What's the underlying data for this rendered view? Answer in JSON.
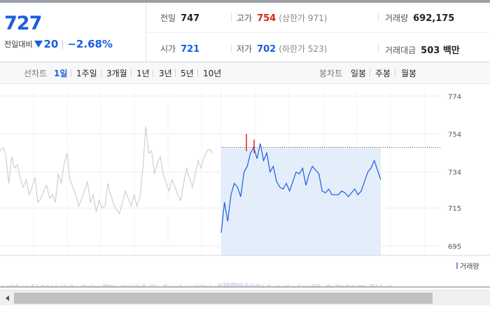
{
  "quote": {
    "price": "727",
    "change_label": "전일대비",
    "change_value": "20",
    "change_rate": "−2.68%",
    "prev_close_label": "전일",
    "prev_close": "747",
    "open_label": "시가",
    "open": "721",
    "high_label": "고가",
    "high": "754",
    "upper_limit": "(상한가 971)",
    "low_label": "저가",
    "low": "702",
    "lower_limit": "(하한가 523)",
    "volume_label": "거래량",
    "volume": "692,175",
    "amount_label": "거래대금",
    "amount": "503 백만"
  },
  "tabs": {
    "line_label": "선차트",
    "line_items": [
      "1일",
      "1주일",
      "3개월",
      "1년",
      "3년",
      "5년",
      "10년"
    ],
    "active": "1일",
    "candle_label": "봉차트",
    "candle_items": [
      "일봉",
      "주봉",
      "월봉"
    ]
  },
  "chart_data": {
    "type": "line",
    "y_ticks": [
      "774",
      "754",
      "734",
      "715",
      "695"
    ],
    "ylim": [
      690,
      780
    ],
    "reference_line": 747,
    "previous_series": [
      745,
      747,
      743,
      728,
      742,
      736,
      738,
      730,
      726,
      730,
      722,
      726,
      731,
      718,
      720,
      724,
      727,
      720,
      722,
      718,
      733,
      728,
      738,
      744,
      730,
      726,
      722,
      716,
      720,
      724,
      729,
      718,
      722,
      713,
      719,
      715,
      716,
      728,
      722,
      717,
      714,
      712,
      718,
      724,
      720,
      716,
      722,
      716,
      721,
      736,
      758,
      744,
      745,
      733,
      739,
      742,
      733,
      728,
      724,
      730,
      726,
      722,
      719,
      728,
      736,
      731,
      726,
      733,
      740,
      736,
      742,
      745,
      746,
      744
    ],
    "today_series": [
      702,
      718,
      708,
      722,
      728,
      726,
      721,
      734,
      737,
      744,
      747,
      741,
      749,
      740,
      744,
      734,
      737,
      729,
      726,
      725,
      728,
      724,
      729,
      734,
      733,
      736,
      727,
      733,
      737,
      735,
      733,
      724,
      723,
      725,
      722,
      722,
      722,
      724,
      723,
      721,
      723,
      725,
      722,
      724,
      729,
      734,
      736,
      740,
      735,
      730
    ]
  },
  "volume_label": "거래량"
}
